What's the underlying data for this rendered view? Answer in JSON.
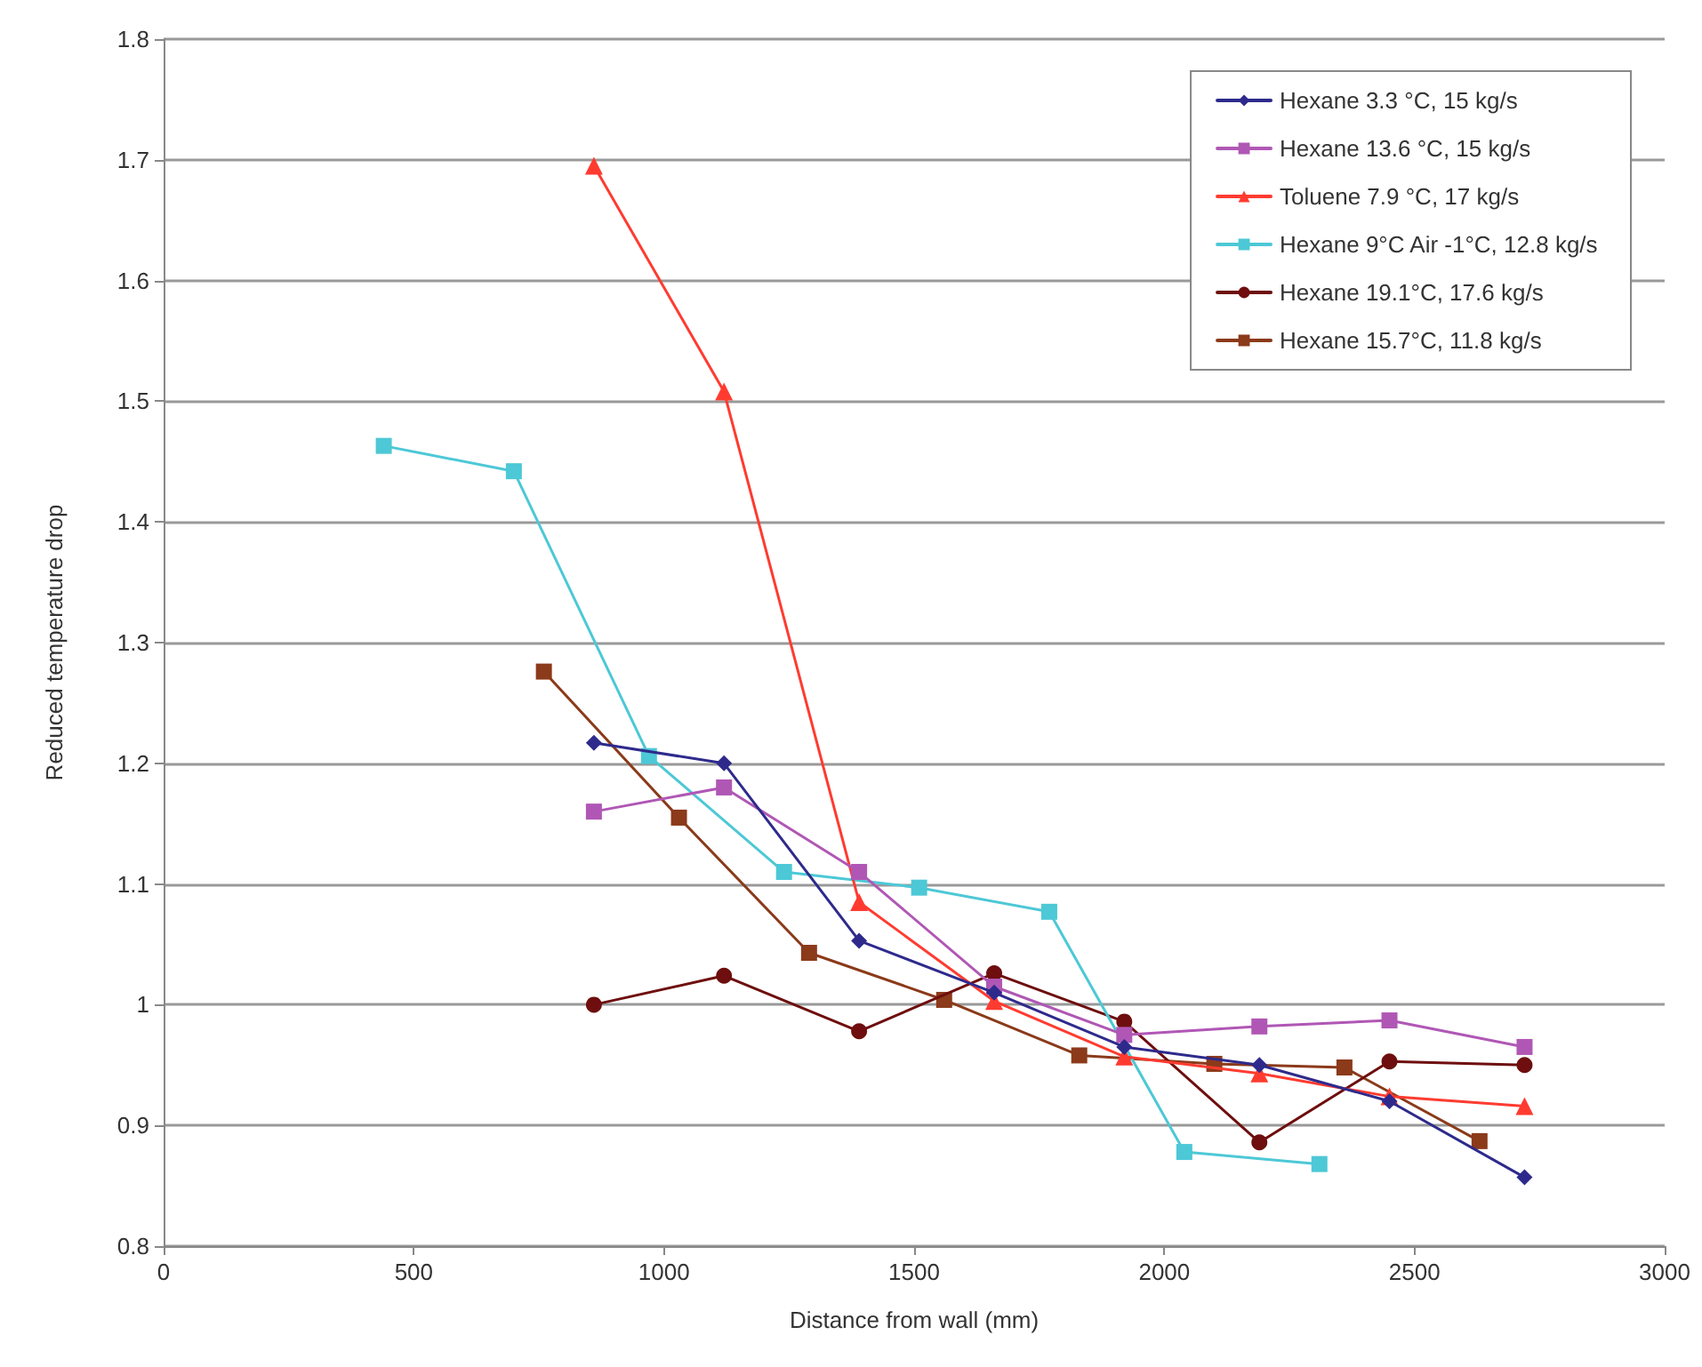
{
  "chart_data": {
    "type": "line",
    "xlabel": "Distance from wall (mm)",
    "ylabel": "Reduced temperature drop",
    "xlim": [
      0,
      3000
    ],
    "xticks": [
      0,
      500,
      1000,
      1500,
      2000,
      2500,
      3000
    ],
    "ylim": [
      0.8,
      1.8
    ],
    "yticks": [
      0.8,
      0.9,
      1,
      1.1,
      1.2,
      1.3,
      1.4,
      1.5,
      1.6,
      1.7,
      1.8
    ],
    "grid": "y",
    "legend": "top right",
    "line_style": "solid",
    "series": [
      {
        "name": "Hexane 3.3 °C, 15 kg/s",
        "color": "#2e2a8c",
        "marker": "diamond",
        "x": [
          860,
          1120,
          1390,
          1660,
          1920,
          2190,
          2450,
          2720
        ],
        "values": [
          1.217,
          1.2,
          1.053,
          1.01,
          0.965,
          0.95,
          0.92,
          0.857
        ]
      },
      {
        "name": "Hexane 13.6 °C, 15 kg/s",
        "color": "#b057b5",
        "marker": "square",
        "x": [
          860,
          1120,
          1390,
          1660,
          1920,
          2190,
          2450,
          2720
        ],
        "values": [
          1.16,
          1.18,
          1.11,
          1.015,
          0.975,
          0.982,
          0.987,
          0.965
        ]
      },
      {
        "name": "Toluene 7.9 °C, 17 kg/s",
        "color": "#ff3b30",
        "marker": "triangle",
        "x": [
          860,
          1120,
          1390,
          1660,
          1920,
          2190,
          2450,
          2720
        ],
        "values": [
          1.695,
          1.508,
          1.085,
          1.003,
          0.957,
          0.943,
          0.924,
          0.916
        ]
      },
      {
        "name": "Hexane 9°C Air -1°C, 12.8 kg/s",
        "color": "#4dc8d6",
        "marker": "square",
        "x": [
          440,
          700,
          970,
          1240,
          1510,
          1770,
          2040,
          2310
        ],
        "values": [
          1.463,
          1.442,
          1.206,
          1.11,
          1.097,
          1.077,
          0.878,
          0.868
        ]
      },
      {
        "name": "Hexane 19.1°C, 17.6 kg/s",
        "color": "#6e0e0e",
        "marker": "circle",
        "x": [
          860,
          1120,
          1390,
          1660,
          1920,
          2190,
          2450,
          2720
        ],
        "values": [
          1.0,
          1.024,
          0.978,
          1.026,
          0.986,
          0.886,
          0.953,
          0.95
        ]
      },
      {
        "name": "Hexane 15.7°C, 11.8 kg/s",
        "color": "#8b3a1a",
        "marker": "square",
        "x": [
          760,
          1030,
          1290,
          1560,
          1830,
          2100,
          2360,
          2630
        ],
        "values": [
          1.276,
          1.155,
          1.043,
          1.004,
          0.958,
          0.951,
          0.948,
          0.887
        ]
      }
    ]
  }
}
